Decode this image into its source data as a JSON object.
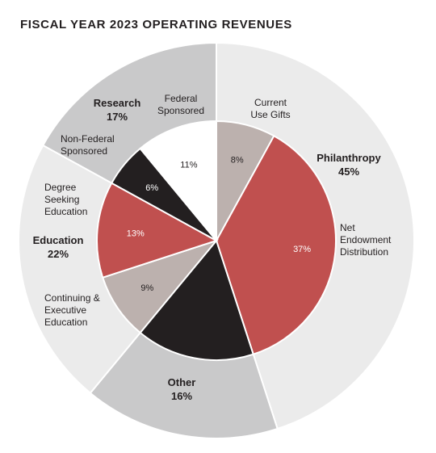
{
  "chart_data": {
    "type": "pie",
    "title": "FISCAL YEAR 2023 OPERATING REVENUES",
    "outer_ring": [
      {
        "name": "Philanthropy",
        "value": 45,
        "label": "45%",
        "color": "#ebebeb"
      },
      {
        "name": "Other",
        "value": 16,
        "label": "16%",
        "color": "#c9c9ca"
      },
      {
        "name": "Education",
        "value": 22,
        "label": "22%",
        "color": "#ebebeb"
      },
      {
        "name": "Research",
        "value": 17,
        "label": "17%",
        "color": "#c9c9ca"
      }
    ],
    "inner_slices": [
      {
        "name": "Current Use Gifts",
        "value": 8,
        "label": "8%",
        "color": "#bcb1ae"
      },
      {
        "name": "Net Endowment Distribution",
        "value": 37,
        "label": "37%",
        "color": "#c0504f"
      },
      {
        "name": "Other",
        "value": 16,
        "label": "",
        "color": "#231f20"
      },
      {
        "name": "Continuing & Executive Education",
        "value": 9,
        "label": "9%",
        "color": "#bcb1ae"
      },
      {
        "name": "Degree Seeking Education",
        "value": 13,
        "label": "13%",
        "color": "#c0504f"
      },
      {
        "name": "Non-Federal Sponsored",
        "value": 6,
        "label": "6%",
        "color": "#231f20"
      },
      {
        "name": "Federal Sponsored",
        "value": 11,
        "label": "11%",
        "color": "#ffffff"
      }
    ],
    "group_labels": [
      {
        "name": "Philanthropy",
        "pct": "45%"
      },
      {
        "name": "Education",
        "pct": "22%"
      },
      {
        "name": "Research",
        "pct": "17%"
      },
      {
        "name": "Other",
        "pct": "16%"
      }
    ],
    "callouts": [
      {
        "text": "Current Use Gifts"
      },
      {
        "text": "Net Endowment Distribution"
      },
      {
        "text": "Federal Sponsored"
      },
      {
        "text": "Non-Federal Sponsored"
      },
      {
        "text": "Degree Seeking Education"
      },
      {
        "text": "Continuing & Executive Education"
      }
    ]
  }
}
